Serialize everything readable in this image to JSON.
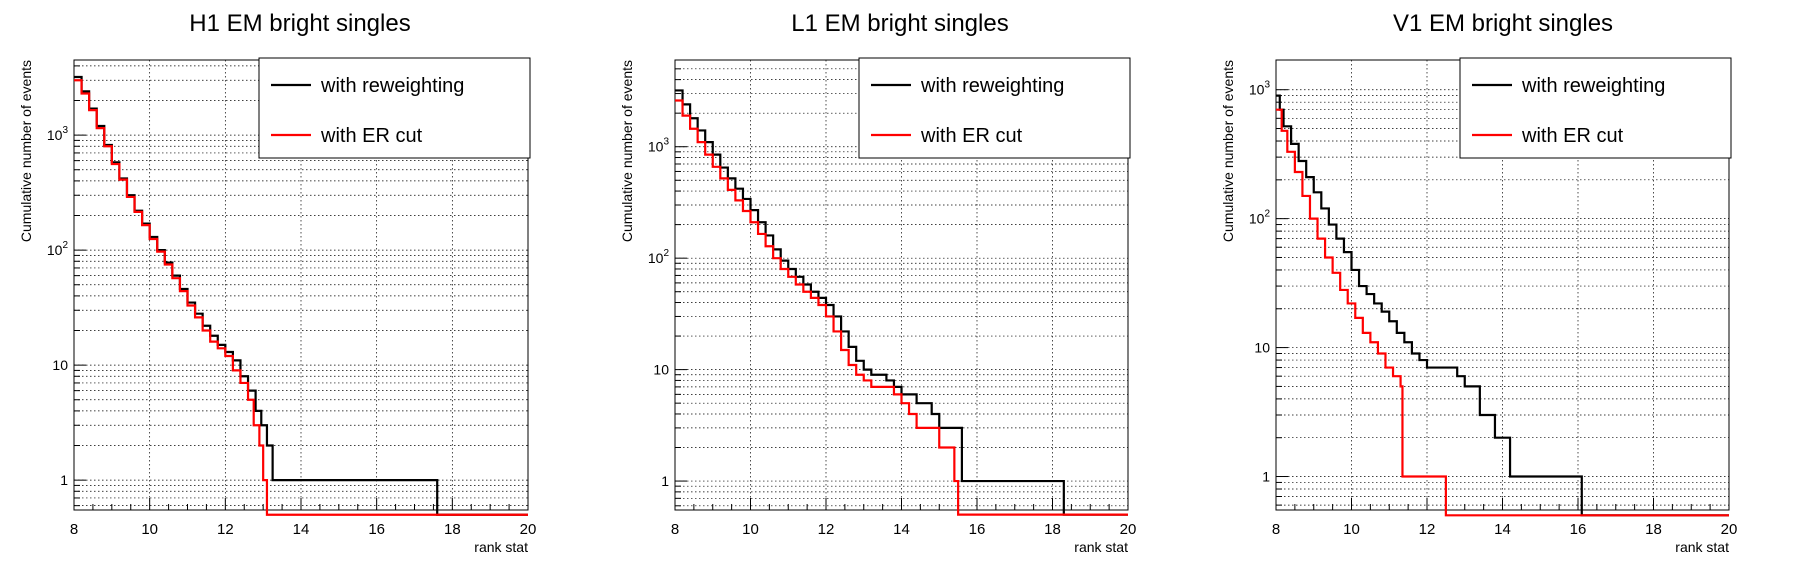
{
  "chart_data": [
    {
      "type": "line",
      "title": "H1 EM bright singles",
      "xlabel": "rank stat",
      "ylabel": "Cumulative number of events",
      "xlim": [
        8,
        20
      ],
      "ylim": [
        0.55,
        4500
      ],
      "yscale": "log",
      "grid": true,
      "legend_position": "top-right",
      "x_ticks": [
        "8",
        "10",
        "12",
        "14",
        "16",
        "18",
        "20"
      ],
      "y_ticks": [
        {
          "value": 1,
          "label": "1"
        },
        {
          "value": 10,
          "label": "10"
        },
        {
          "value": 100,
          "label": "10²"
        },
        {
          "value": 1000,
          "label": "10³"
        }
      ],
      "series": [
        {
          "name": "with reweighting",
          "color": "#000000",
          "step": true,
          "points": [
            [
              8.0,
              3200
            ],
            [
              8.2,
              2400
            ],
            [
              8.4,
              1700
            ],
            [
              8.6,
              1200
            ],
            [
              8.8,
              820
            ],
            [
              9.0,
              580
            ],
            [
              9.2,
              420
            ],
            [
              9.4,
              300
            ],
            [
              9.6,
              220
            ],
            [
              9.8,
              170
            ],
            [
              10.0,
              130
            ],
            [
              10.2,
              100
            ],
            [
              10.4,
              78
            ],
            [
              10.6,
              60
            ],
            [
              10.8,
              46
            ],
            [
              11.0,
              35
            ],
            [
              11.2,
              28
            ],
            [
              11.4,
              22
            ],
            [
              11.6,
              18
            ],
            [
              11.8,
              15
            ],
            [
              12.0,
              13
            ],
            [
              12.2,
              11
            ],
            [
              12.4,
              8
            ],
            [
              12.6,
              6
            ],
            [
              12.8,
              4
            ],
            [
              12.95,
              3
            ],
            [
              13.1,
              2
            ],
            [
              13.25,
              1
            ],
            [
              17.6,
              0.5
            ],
            [
              20.0,
              0.5
            ]
          ]
        },
        {
          "name": "with ER cut",
          "color": "#ff0000",
          "step": true,
          "points": [
            [
              8.0,
              3000
            ],
            [
              8.2,
              2300
            ],
            [
              8.4,
              1650
            ],
            [
              8.6,
              1150
            ],
            [
              8.8,
              800
            ],
            [
              9.0,
              560
            ],
            [
              9.2,
              410
            ],
            [
              9.4,
              290
            ],
            [
              9.6,
              215
            ],
            [
              9.8,
              165
            ],
            [
              10.0,
              125
            ],
            [
              10.2,
              97
            ],
            [
              10.4,
              75
            ],
            [
              10.6,
              57
            ],
            [
              10.8,
              44
            ],
            [
              11.0,
              33
            ],
            [
              11.2,
              26
            ],
            [
              11.4,
              20
            ],
            [
              11.6,
              16
            ],
            [
              11.8,
              14
            ],
            [
              12.0,
              12
            ],
            [
              12.2,
              9
            ],
            [
              12.4,
              7
            ],
            [
              12.6,
              5
            ],
            [
              12.75,
              3
            ],
            [
              12.9,
              2
            ],
            [
              13.0,
              1
            ],
            [
              13.1,
              0.5
            ],
            [
              20.0,
              0.5
            ]
          ]
        }
      ]
    },
    {
      "type": "line",
      "title": "L1 EM bright singles",
      "xlabel": "rank stat",
      "ylabel": "Cumulative number of events",
      "xlim": [
        8,
        20
      ],
      "ylim": [
        0.55,
        6000
      ],
      "yscale": "log",
      "grid": true,
      "legend_position": "top-right",
      "x_ticks": [
        "8",
        "10",
        "12",
        "14",
        "16",
        "18",
        "20"
      ],
      "y_ticks": [
        {
          "value": 1,
          "label": "1"
        },
        {
          "value": 10,
          "label": "10"
        },
        {
          "value": 100,
          "label": "10²"
        },
        {
          "value": 1000,
          "label": "10³"
        }
      ],
      "series": [
        {
          "name": "with reweighting",
          "color": "#000000",
          "step": true,
          "points": [
            [
              8.0,
              3200
            ],
            [
              8.2,
              2400
            ],
            [
              8.4,
              1800
            ],
            [
              8.6,
              1400
            ],
            [
              8.8,
              1100
            ],
            [
              9.0,
              850
            ],
            [
              9.2,
              650
            ],
            [
              9.4,
              520
            ],
            [
              9.6,
              420
            ],
            [
              9.8,
              340
            ],
            [
              10.0,
              270
            ],
            [
              10.2,
              210
            ],
            [
              10.4,
              160
            ],
            [
              10.6,
              120
            ],
            [
              10.8,
              95
            ],
            [
              11.0,
              80
            ],
            [
              11.2,
              68
            ],
            [
              11.4,
              58
            ],
            [
              11.6,
              50
            ],
            [
              11.8,
              44
            ],
            [
              12.0,
              38
            ],
            [
              12.2,
              30
            ],
            [
              12.4,
              22
            ],
            [
              12.6,
              16
            ],
            [
              12.8,
              12
            ],
            [
              13.0,
              10
            ],
            [
              13.2,
              9
            ],
            [
              13.6,
              8
            ],
            [
              13.8,
              7
            ],
            [
              14.0,
              6
            ],
            [
              14.4,
              5
            ],
            [
              14.8,
              4
            ],
            [
              15.0,
              3
            ],
            [
              15.6,
              1
            ],
            [
              18.3,
              0.5
            ],
            [
              20.0,
              0.5
            ]
          ]
        },
        {
          "name": "with ER cut",
          "color": "#ff0000",
          "step": true,
          "points": [
            [
              8.0,
              2600
            ],
            [
              8.2,
              1900
            ],
            [
              8.4,
              1450
            ],
            [
              8.6,
              1100
            ],
            [
              8.8,
              850
            ],
            [
              9.0,
              660
            ],
            [
              9.2,
              520
            ],
            [
              9.4,
              410
            ],
            [
              9.6,
              330
            ],
            [
              9.8,
              265
            ],
            [
              10.0,
              210
            ],
            [
              10.2,
              165
            ],
            [
              10.4,
              128
            ],
            [
              10.6,
              100
            ],
            [
              10.8,
              80
            ],
            [
              11.0,
              68
            ],
            [
              11.2,
              58
            ],
            [
              11.4,
              50
            ],
            [
              11.6,
              44
            ],
            [
              11.8,
              38
            ],
            [
              12.0,
              30
            ],
            [
              12.2,
              22
            ],
            [
              12.4,
              15
            ],
            [
              12.6,
              11
            ],
            [
              12.8,
              9
            ],
            [
              13.0,
              8
            ],
            [
              13.2,
              7
            ],
            [
              13.8,
              6
            ],
            [
              14.0,
              5
            ],
            [
              14.2,
              4
            ],
            [
              14.4,
              3
            ],
            [
              14.8,
              3
            ],
            [
              15.0,
              2
            ],
            [
              15.4,
              1
            ],
            [
              15.5,
              0.5
            ],
            [
              20.0,
              0.5
            ]
          ]
        }
      ]
    },
    {
      "type": "line",
      "title": "V1 EM bright singles",
      "xlabel": "rank stat",
      "ylabel": "Cumulative number of events",
      "xlim": [
        8,
        20
      ],
      "ylim": [
        0.55,
        1700
      ],
      "yscale": "log",
      "grid": true,
      "legend_position": "top-right",
      "x_ticks": [
        "8",
        "10",
        "12",
        "14",
        "16",
        "18",
        "20"
      ],
      "y_ticks": [
        {
          "value": 1,
          "label": "1"
        },
        {
          "value": 10,
          "label": "10"
        },
        {
          "value": 100,
          "label": "10²"
        },
        {
          "value": 1000,
          "label": "10³"
        }
      ],
      "series": [
        {
          "name": "with reweighting",
          "color": "#000000",
          "step": true,
          "points": [
            [
              8.0,
              900
            ],
            [
              8.1,
              700
            ],
            [
              8.2,
              520
            ],
            [
              8.4,
              380
            ],
            [
              8.6,
              280
            ],
            [
              8.8,
              210
            ],
            [
              9.0,
              160
            ],
            [
              9.2,
              120
            ],
            [
              9.4,
              90
            ],
            [
              9.6,
              70
            ],
            [
              9.8,
              55
            ],
            [
              10.0,
              40
            ],
            [
              10.2,
              30
            ],
            [
              10.4,
              26
            ],
            [
              10.6,
              22
            ],
            [
              10.8,
              19
            ],
            [
              11.0,
              16
            ],
            [
              11.2,
              13
            ],
            [
              11.4,
              11
            ],
            [
              11.6,
              9
            ],
            [
              11.8,
              8
            ],
            [
              12.0,
              7
            ],
            [
              12.2,
              7
            ],
            [
              12.8,
              6
            ],
            [
              13.0,
              5
            ],
            [
              13.4,
              3
            ],
            [
              13.8,
              2
            ],
            [
              14.0,
              2
            ],
            [
              14.2,
              1
            ],
            [
              16.1,
              0.5
            ],
            [
              20.0,
              0.5
            ]
          ]
        },
        {
          "name": "with ER cut",
          "color": "#ff0000",
          "step": true,
          "points": [
            [
              8.0,
              700
            ],
            [
              8.15,
              480
            ],
            [
              8.3,
              330
            ],
            [
              8.5,
              230
            ],
            [
              8.7,
              150
            ],
            [
              8.9,
              100
            ],
            [
              9.1,
              70
            ],
            [
              9.3,
              50
            ],
            [
              9.5,
              38
            ],
            [
              9.7,
              28
            ],
            [
              9.9,
              22
            ],
            [
              10.1,
              17
            ],
            [
              10.3,
              13
            ],
            [
              10.5,
              11
            ],
            [
              10.7,
              9
            ],
            [
              10.9,
              7
            ],
            [
              11.1,
              6
            ],
            [
              11.3,
              5
            ],
            [
              11.35,
              1
            ],
            [
              12.5,
              0.5
            ],
            [
              20.0,
              0.5
            ]
          ]
        }
      ]
    }
  ]
}
